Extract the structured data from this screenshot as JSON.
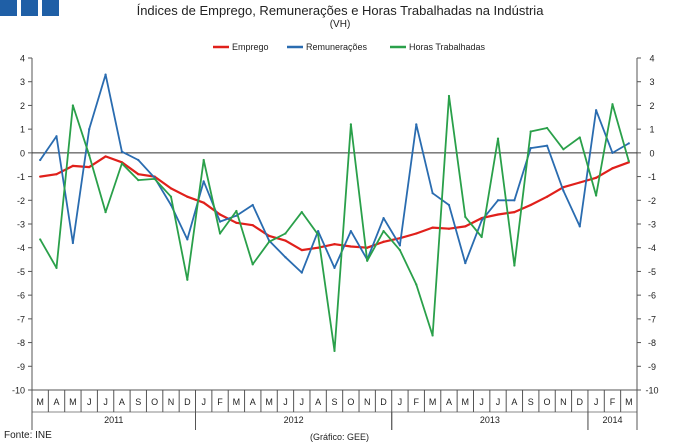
{
  "header": {
    "logo_label": "logo",
    "title": "Índices de Emprego, Remunerações e Horas Trabalhadas na Indústria",
    "subtitle": "(VH)"
  },
  "footer": {
    "source": "Fonte: INE",
    "credit": "(Gráfico: GEE)"
  },
  "chart_data": {
    "type": "line",
    "title": "Índices de Emprego, Remunerações e Horas Trabalhadas na Indústria",
    "subtitle": "(VH)",
    "ylim": [
      -10,
      4
    ],
    "yticks": [
      4,
      3,
      2,
      1,
      0,
      -1,
      -2,
      -3,
      -4,
      -5,
      -6,
      -7,
      -8,
      -9,
      -10
    ],
    "grid": false,
    "legend_position": "top-center",
    "categories": [
      "M",
      "A",
      "M",
      "J",
      "J",
      "A",
      "S",
      "O",
      "N",
      "D",
      "J",
      "F",
      "M",
      "A",
      "M",
      "J",
      "J",
      "A",
      "S",
      "O",
      "N",
      "D",
      "J",
      "F",
      "M",
      "A",
      "M",
      "J",
      "J",
      "A",
      "S",
      "O",
      "N",
      "D",
      "J",
      "F",
      "M"
    ],
    "years": [
      {
        "label": "2011",
        "start": 0,
        "end": 9
      },
      {
        "label": "2012",
        "start": 10,
        "end": 21
      },
      {
        "label": "2013",
        "start": 22,
        "end": 33
      },
      {
        "label": "2014",
        "start": 34,
        "end": 36
      }
    ],
    "series": [
      {
        "name": "Emprego",
        "color": "#e0201b",
        "values": [
          -1.0,
          -0.9,
          -0.55,
          -0.6,
          -0.15,
          -0.4,
          -0.9,
          -1.0,
          -1.5,
          -1.85,
          -2.1,
          -2.6,
          -2.95,
          -3.05,
          -3.5,
          -3.7,
          -4.1,
          -4.0,
          -3.85,
          -3.95,
          -4.0,
          -3.75,
          -3.6,
          -3.4,
          -3.15,
          -3.2,
          -3.1,
          -2.75,
          -2.6,
          -2.5,
          -2.2,
          -1.85,
          -1.45,
          -1.25,
          -1.05,
          -0.65,
          -0.4
        ]
      },
      {
        "name": "Remunerações",
        "color": "#2a6cb0",
        "values": [
          -0.3,
          0.7,
          -3.8,
          1.0,
          3.3,
          0.05,
          -0.3,
          -1.05,
          -2.2,
          -3.65,
          -1.2,
          -2.9,
          -2.65,
          -2.2,
          -3.7,
          -4.4,
          -5.05,
          -3.3,
          -4.85,
          -3.3,
          -4.5,
          -2.75,
          -3.9,
          1.2,
          -1.7,
          -2.2,
          -4.65,
          -2.85,
          -2.0,
          -2.0,
          0.2,
          0.3,
          -1.6,
          -3.1,
          1.8,
          0.0,
          0.4
        ]
      },
      {
        "name": "Horas Trabalhadas",
        "color": "#2aa04a",
        "values": [
          -3.65,
          -4.85,
          2.0,
          -0.1,
          -2.5,
          -0.45,
          -1.15,
          -1.1,
          -1.85,
          -5.35,
          -0.3,
          -3.4,
          -2.45,
          -4.7,
          -3.75,
          -3.4,
          -2.5,
          -3.45,
          -8.35,
          1.2,
          -4.55,
          -3.3,
          -4.1,
          -5.55,
          -7.7,
          2.4,
          -2.7,
          -3.55,
          0.6,
          -4.75,
          0.9,
          1.05,
          0.15,
          0.65,
          -1.8,
          2.05,
          -0.35
        ]
      }
    ]
  }
}
